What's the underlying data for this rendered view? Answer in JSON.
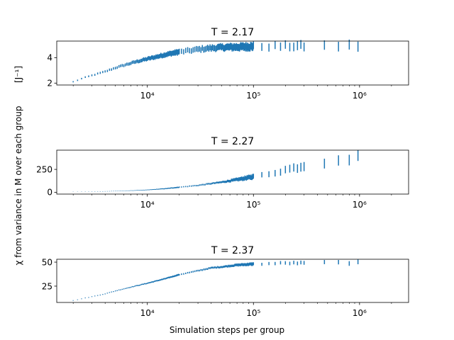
{
  "figure": {
    "ylabel_main": "χ from variance in M over each group",
    "ylabel_unit": "[J⁻¹]",
    "xlabel": "Simulation steps per group"
  },
  "chart_data": [
    {
      "type": "errorbar",
      "title": "T = 2.17",
      "xscale": "log",
      "xlim": [
        1400,
        2900000
      ],
      "ylim": [
        1.85,
        5.3
      ],
      "x_ticks": [
        10000,
        100000,
        1000000
      ],
      "x_tick_labels": [
        "10⁴",
        "10⁵",
        "10⁶"
      ],
      "y_ticks": [
        2,
        4
      ],
      "y_tick_labels": [
        "2",
        "4"
      ],
      "series": [
        {
          "curve": {
            "x": [
              2000,
              2500,
              3000,
              4000,
              5000,
              6000,
              8000,
              10000,
              12000,
              15000,
              20000,
              25000,
              30000,
              40000,
              50000,
              60000,
              80000,
              100000,
              200000,
              500000,
              1000000
            ],
            "y": [
              2.1,
              2.4,
              2.6,
              2.9,
              3.2,
              3.4,
              3.7,
              3.9,
              4.05,
              4.25,
              4.45,
              4.55,
              4.65,
              4.75,
              4.8,
              4.82,
              4.85,
              4.88,
              4.9,
              4.92,
              4.93
            ]
          },
          "err": [
            0.05,
            0.1,
            0.15,
            0.2,
            0.25,
            0.3,
            0.35,
            0.4
          ],
          "err_x": [
            2000,
            5000,
            10000,
            20000,
            50000,
            100000,
            300000,
            1000000
          ]
        }
      ]
    },
    {
      "type": "errorbar",
      "title": "T = 2.27",
      "xscale": "log",
      "xlim": [
        1400,
        2900000
      ],
      "ylim": [
        -20,
        460
      ],
      "x_ticks": [
        10000,
        100000,
        1000000
      ],
      "x_tick_labels": [
        "10⁴",
        "10⁵",
        "10⁶"
      ],
      "y_ticks": [
        0,
        250
      ],
      "y_tick_labels": [
        "0",
        "250"
      ],
      "series": [
        {
          "curve": {
            "x": [
              2000,
              4000,
              6000,
              10000,
              15000,
              20000,
              30000,
              40000,
              50000,
              60000,
              80000,
              100000,
              150000,
              200000,
              300000,
              400000,
              500000,
              600000,
              800000,
              1000000
            ],
            "y": [
              5,
              10,
              15,
              25,
              40,
              55,
              75,
              95,
              110,
              125,
              150,
              170,
              210,
              245,
              290,
              310,
              340,
              360,
              370,
              420
            ]
          },
          "err": [
            1,
            3,
            10,
            25,
            50,
            60
          ],
          "err_x": [
            2000,
            10000,
            50000,
            100000,
            300000,
            1000000
          ]
        }
      ]
    },
    {
      "type": "errorbar",
      "title": "T = 2.37",
      "xscale": "log",
      "xlim": [
        1400,
        2900000
      ],
      "ylim": [
        8,
        53
      ],
      "x_ticks": [
        10000,
        100000,
        1000000
      ],
      "x_tick_labels": [
        "10⁴",
        "10⁵",
        "10⁶"
      ],
      "y_ticks": [
        25,
        50
      ],
      "y_tick_labels": [
        "25",
        "50"
      ],
      "series": [
        {
          "curve": {
            "x": [
              2000,
              3000,
              4000,
              5000,
              7000,
              10000,
              15000,
              20000,
              30000,
              40000,
              50000,
              70000,
              100000,
              150000,
              200000,
              300000,
              500000,
              1000000
            ],
            "y": [
              10,
              14,
              17,
              20,
              24,
              28,
              33,
              37,
              41,
              44,
              45,
              47,
              48,
              48.5,
              49,
              49,
              49.5,
              49.5
            ]
          },
          "err": [
            0.3,
            0.6,
            1.0,
            1.5,
            2.0,
            2.5
          ],
          "err_x": [
            2000,
            10000,
            50000,
            100000,
            300000,
            1000000
          ]
        }
      ]
    }
  ]
}
